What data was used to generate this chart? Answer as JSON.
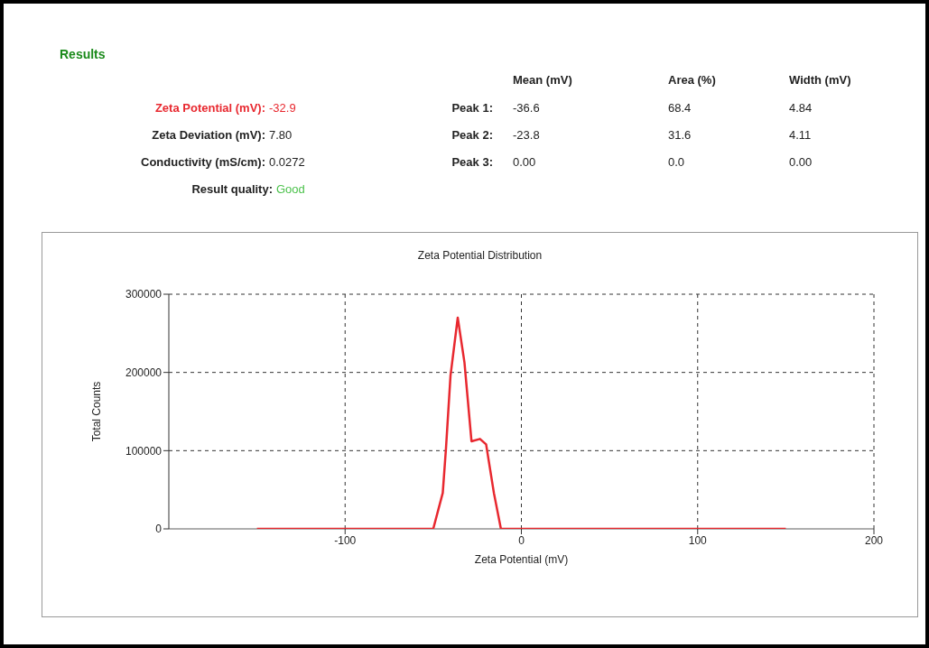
{
  "chart_data": [
    {
      "type": "other",
      "title": "Results",
      "annotations": [
        "Zeta Potential (mV):",
        "-32.9",
        "Zeta Deviation (mV):",
        "7.80",
        "Conductivity (mS/cm):",
        "0.0272",
        "Result quality:",
        "Good",
        "Mean (mV)",
        "Area (%)",
        "Width (mV)",
        "Peak 1:",
        "-36.6",
        "68.4",
        "4.84",
        "Peak 2:",
        "-23.8",
        "31.6",
        "4.11",
        "Peak 3:",
        "0.00",
        "0.0",
        "0.00"
      ]
    },
    {
      "type": "line",
      "title": "Zeta Potential Distribution",
      "xlabel": "Zeta Potential (mV)",
      "ylabel": "Total Counts",
      "x": [
        -150,
        -50,
        -44.6,
        -42.8,
        -40.2,
        -36.1,
        -32.3,
        -28.3,
        -23.5,
        -20,
        -15.6,
        -11.6,
        150
      ],
      "series": [
        {
          "color": "#e8282f",
          "values": [
            0,
            0,
            46000,
            102000,
            196000,
            270000,
            213000,
            112000,
            115000,
            108000,
            46000,
            0,
            0
          ]
        }
      ],
      "xlim": [
        -200,
        200
      ],
      "xticks": [
        -100,
        0,
        100,
        200
      ],
      "ylim": [
        0,
        300000
      ],
      "yticks": [
        0,
        100000,
        200000,
        300000
      ],
      "grid": true,
      "marker": "none",
      "line_style": "solid"
    }
  ]
}
